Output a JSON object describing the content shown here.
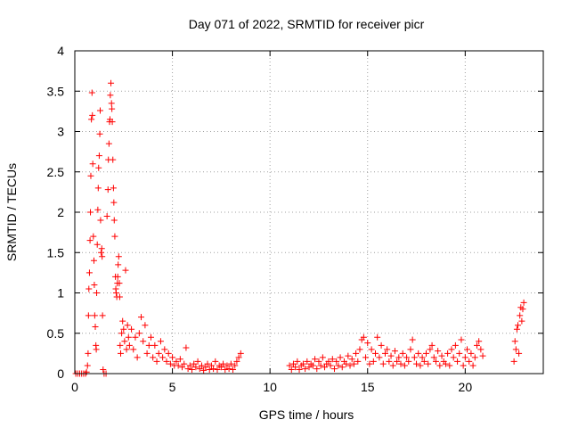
{
  "chart_data": {
    "type": "scatter",
    "title": "Day 071 of 2022, SRMTID for receiver picr",
    "xlabel": "GPS time / hours",
    "ylabel": "SRMTID / TECUs",
    "xlim": [
      0,
      24
    ],
    "ylim": [
      0,
      4
    ],
    "xticks": [
      0,
      5,
      10,
      15,
      20
    ],
    "yticks": [
      0,
      0.5,
      1,
      1.5,
      2,
      2.5,
      3,
      3.5,
      4
    ],
    "ytick_labels": [
      "0",
      "0.5",
      "1",
      "1.5",
      "2",
      "2.5",
      "3",
      "3.5",
      "4"
    ],
    "grid": true,
    "marker": "+",
    "series": [
      {
        "name": "SRMTID",
        "color": "#ff0000",
        "points": [
          [
            0.05,
            0.0
          ],
          [
            0.15,
            0.0
          ],
          [
            0.25,
            0.0
          ],
          [
            0.35,
            0.0
          ],
          [
            0.45,
            0.0
          ],
          [
            0.55,
            0.0
          ],
          [
            0.6,
            0.02
          ],
          [
            0.65,
            0.1
          ],
          [
            0.68,
            0.25
          ],
          [
            0.7,
            0.72
          ],
          [
            0.72,
            1.05
          ],
          [
            0.75,
            1.25
          ],
          [
            0.78,
            1.65
          ],
          [
            0.8,
            2.0
          ],
          [
            0.82,
            2.45
          ],
          [
            0.85,
            3.15
          ],
          [
            0.88,
            3.48
          ],
          [
            0.9,
            3.2
          ],
          [
            0.92,
            2.6
          ],
          [
            0.95,
            1.7
          ],
          [
            0.98,
            1.4
          ],
          [
            1.0,
            1.1
          ],
          [
            1.02,
            0.72
          ],
          [
            1.05,
            0.58
          ],
          [
            1.08,
            0.35
          ],
          [
            1.1,
            0.3
          ],
          [
            1.12,
            1.0
          ],
          [
            1.15,
            1.6
          ],
          [
            1.18,
            2.03
          ],
          [
            1.2,
            2.3
          ],
          [
            1.22,
            2.55
          ],
          [
            1.25,
            2.7
          ],
          [
            1.28,
            2.97
          ],
          [
            1.3,
            3.26
          ],
          [
            1.32,
            1.9
          ],
          [
            1.35,
            1.5
          ],
          [
            1.38,
            1.55
          ],
          [
            1.4,
            1.45
          ],
          [
            1.42,
            0.72
          ],
          [
            1.45,
            0.05
          ],
          [
            1.5,
            0.0
          ],
          [
            1.6,
            0.0
          ],
          [
            1.65,
            1.95
          ],
          [
            1.7,
            2.28
          ],
          [
            1.72,
            2.65
          ],
          [
            1.75,
            2.85
          ],
          [
            1.78,
            3.12
          ],
          [
            1.8,
            3.15
          ],
          [
            1.82,
            3.45
          ],
          [
            1.85,
            3.6
          ],
          [
            1.88,
            3.35
          ],
          [
            1.9,
            3.28
          ],
          [
            1.92,
            3.12
          ],
          [
            1.95,
            2.65
          ],
          [
            1.98,
            2.3
          ],
          [
            2.0,
            2.12
          ],
          [
            2.02,
            1.9
          ],
          [
            2.05,
            1.7
          ],
          [
            2.08,
            1.2
          ],
          [
            2.1,
            1.05
          ],
          [
            2.12,
            1.0
          ],
          [
            2.15,
            0.95
          ],
          [
            2.18,
            1.12
          ],
          [
            2.2,
            1.2
          ],
          [
            2.22,
            1.35
          ],
          [
            2.25,
            1.45
          ],
          [
            2.28,
            1.12
          ],
          [
            2.3,
            0.95
          ],
          [
            2.32,
            0.35
          ],
          [
            2.35,
            0.25
          ],
          [
            2.4,
            0.5
          ],
          [
            2.45,
            0.65
          ],
          [
            2.5,
            0.55
          ],
          [
            2.55,
            0.4
          ],
          [
            2.6,
            1.28
          ],
          [
            2.65,
            0.3
          ],
          [
            2.7,
            0.6
          ],
          [
            2.75,
            0.45
          ],
          [
            2.8,
            0.35
          ],
          [
            2.9,
            0.55
          ],
          [
            3.0,
            0.3
          ],
          [
            3.1,
            0.45
          ],
          [
            3.2,
            0.2
          ],
          [
            3.3,
            0.5
          ],
          [
            3.4,
            0.7
          ],
          [
            3.5,
            0.4
          ],
          [
            3.6,
            0.6
          ],
          [
            3.7,
            0.25
          ],
          [
            3.8,
            0.35
          ],
          [
            3.9,
            0.45
          ],
          [
            4.0,
            0.2
          ],
          [
            4.1,
            0.35
          ],
          [
            4.2,
            0.15
          ],
          [
            4.3,
            0.25
          ],
          [
            4.4,
            0.4
          ],
          [
            4.5,
            0.2
          ],
          [
            4.6,
            0.3
          ],
          [
            4.7,
            0.15
          ],
          [
            4.8,
            0.25
          ],
          [
            4.9,
            0.12
          ],
          [
            5.0,
            0.2
          ],
          [
            5.1,
            0.1
          ],
          [
            5.2,
            0.15
          ],
          [
            5.3,
            0.1
          ],
          [
            5.4,
            0.18
          ],
          [
            5.5,
            0.08
          ],
          [
            5.6,
            0.12
          ],
          [
            5.7,
            0.32
          ],
          [
            5.8,
            0.06
          ],
          [
            5.9,
            0.1
          ],
          [
            6.0,
            0.05
          ],
          [
            6.1,
            0.12
          ],
          [
            6.2,
            0.08
          ],
          [
            6.3,
            0.15
          ],
          [
            6.4,
            0.06
          ],
          [
            6.5,
            0.1
          ],
          [
            6.6,
            0.04
          ],
          [
            6.7,
            0.08
          ],
          [
            6.8,
            0.12
          ],
          [
            6.9,
            0.05
          ],
          [
            7.0,
            0.1
          ],
          [
            7.1,
            0.06
          ],
          [
            7.2,
            0.15
          ],
          [
            7.3,
            0.05
          ],
          [
            7.4,
            0.1
          ],
          [
            7.5,
            0.08
          ],
          [
            7.6,
            0.12
          ],
          [
            7.7,
            0.05
          ],
          [
            7.8,
            0.1
          ],
          [
            7.9,
            0.06
          ],
          [
            8.0,
            0.12
          ],
          [
            8.1,
            0.05
          ],
          [
            8.2,
            0.1
          ],
          [
            8.3,
            0.15
          ],
          [
            8.4,
            0.2
          ],
          [
            8.5,
            0.25
          ],
          [
            11.0,
            0.1
          ],
          [
            11.1,
            0.05
          ],
          [
            11.2,
            0.12
          ],
          [
            11.3,
            0.08
          ],
          [
            11.4,
            0.15
          ],
          [
            11.5,
            0.05
          ],
          [
            11.6,
            0.1
          ],
          [
            11.7,
            0.12
          ],
          [
            11.8,
            0.06
          ],
          [
            11.9,
            0.15
          ],
          [
            12.0,
            0.08
          ],
          [
            12.1,
            0.12
          ],
          [
            12.2,
            0.1
          ],
          [
            12.3,
            0.18
          ],
          [
            12.4,
            0.06
          ],
          [
            12.5,
            0.15
          ],
          [
            12.6,
            0.1
          ],
          [
            12.7,
            0.2
          ],
          [
            12.8,
            0.08
          ],
          [
            12.9,
            0.12
          ],
          [
            13.0,
            0.15
          ],
          [
            13.1,
            0.1
          ],
          [
            13.2,
            0.18
          ],
          [
            13.3,
            0.06
          ],
          [
            13.4,
            0.15
          ],
          [
            13.5,
            0.1
          ],
          [
            13.6,
            0.2
          ],
          [
            13.7,
            0.08
          ],
          [
            13.8,
            0.15
          ],
          [
            13.9,
            0.12
          ],
          [
            14.0,
            0.22
          ],
          [
            14.1,
            0.1
          ],
          [
            14.2,
            0.18
          ],
          [
            14.3,
            0.12
          ],
          [
            14.4,
            0.25
          ],
          [
            14.5,
            0.15
          ],
          [
            14.6,
            0.3
          ],
          [
            14.7,
            0.42
          ],
          [
            14.8,
            0.45
          ],
          [
            14.9,
            0.2
          ],
          [
            15.0,
            0.38
          ],
          [
            15.1,
            0.12
          ],
          [
            15.2,
            0.3
          ],
          [
            15.3,
            0.15
          ],
          [
            15.4,
            0.25
          ],
          [
            15.5,
            0.45
          ],
          [
            15.6,
            0.2
          ],
          [
            15.7,
            0.35
          ],
          [
            15.8,
            0.12
          ],
          [
            15.9,
            0.25
          ],
          [
            16.0,
            0.3
          ],
          [
            16.1,
            0.15
          ],
          [
            16.2,
            0.22
          ],
          [
            16.3,
            0.1
          ],
          [
            16.4,
            0.28
          ],
          [
            16.5,
            0.15
          ],
          [
            16.6,
            0.2
          ],
          [
            16.7,
            0.12
          ],
          [
            16.8,
            0.25
          ],
          [
            16.9,
            0.1
          ],
          [
            17.0,
            0.2
          ],
          [
            17.1,
            0.15
          ],
          [
            17.2,
            0.3
          ],
          [
            17.3,
            0.42
          ],
          [
            17.4,
            0.2
          ],
          [
            17.5,
            0.12
          ],
          [
            17.6,
            0.25
          ],
          [
            17.7,
            0.1
          ],
          [
            17.8,
            0.2
          ],
          [
            17.9,
            0.15
          ],
          [
            18.0,
            0.25
          ],
          [
            18.1,
            0.12
          ],
          [
            18.2,
            0.3
          ],
          [
            18.3,
            0.35
          ],
          [
            18.4,
            0.2
          ],
          [
            18.5,
            0.15
          ],
          [
            18.6,
            0.28
          ],
          [
            18.7,
            0.1
          ],
          [
            18.8,
            0.22
          ],
          [
            18.9,
            0.15
          ],
          [
            19.0,
            0.12
          ],
          [
            19.1,
            0.25
          ],
          [
            19.2,
            0.1
          ],
          [
            19.3,
            0.3
          ],
          [
            19.4,
            0.2
          ],
          [
            19.5,
            0.35
          ],
          [
            19.6,
            0.15
          ],
          [
            19.7,
            0.25
          ],
          [
            19.8,
            0.42
          ],
          [
            19.9,
            0.1
          ],
          [
            20.0,
            0.2
          ],
          [
            20.1,
            0.3
          ],
          [
            20.2,
            0.15
          ],
          [
            20.3,
            0.25
          ],
          [
            20.4,
            0.1
          ],
          [
            20.5,
            0.2
          ],
          [
            20.6,
            0.35
          ],
          [
            20.7,
            0.4
          ],
          [
            20.8,
            0.3
          ],
          [
            20.9,
            0.22
          ],
          [
            22.5,
            0.15
          ],
          [
            22.55,
            0.4
          ],
          [
            22.6,
            0.3
          ],
          [
            22.65,
            0.55
          ],
          [
            22.7,
            0.6
          ],
          [
            22.75,
            0.25
          ],
          [
            22.8,
            0.72
          ],
          [
            22.85,
            0.82
          ],
          [
            22.9,
            0.65
          ],
          [
            22.95,
            0.8
          ],
          [
            23.0,
            0.88
          ]
        ]
      }
    ]
  }
}
